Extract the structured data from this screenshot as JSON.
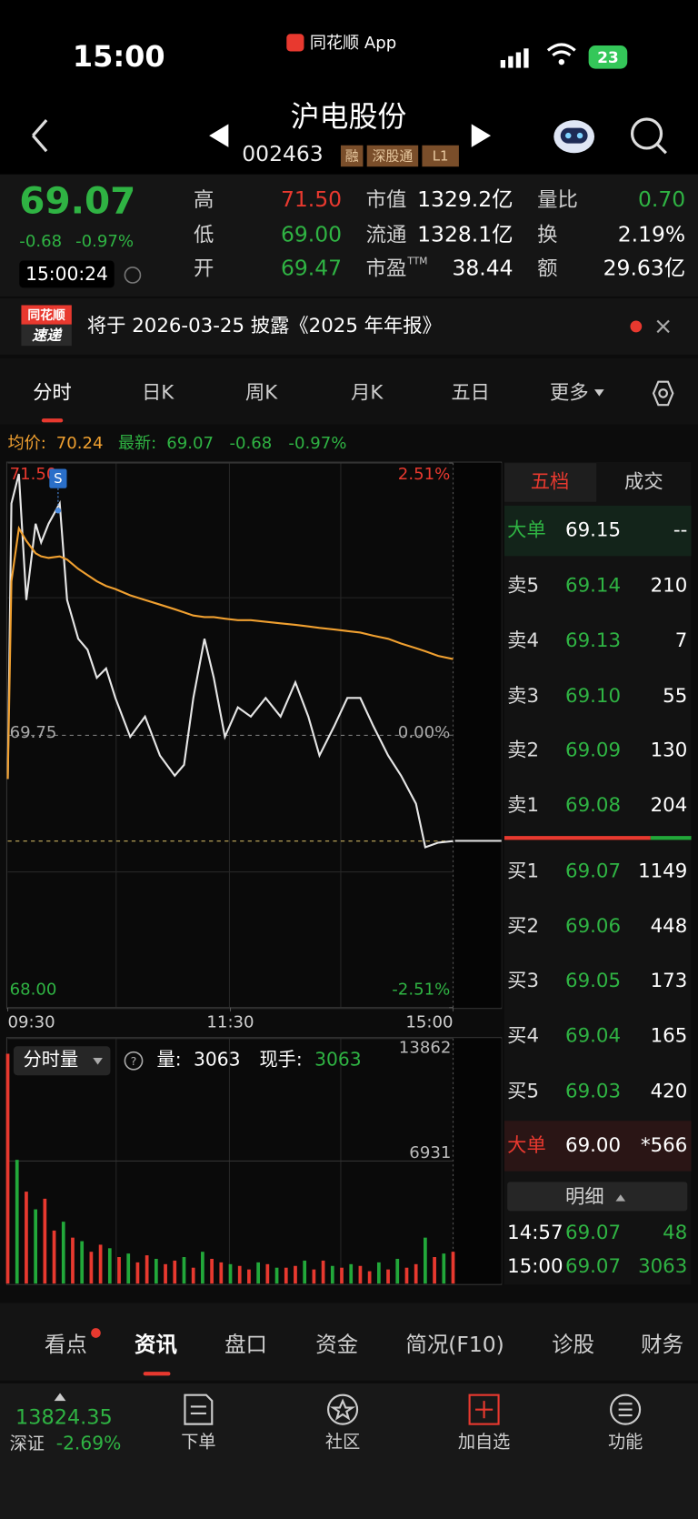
{
  "status_bar": {
    "time": "15:00",
    "app_name": "同花顺 App",
    "battery": "23"
  },
  "header": {
    "title": "沪电股份",
    "code": "002463",
    "tags": [
      "融",
      "深股通",
      "L1"
    ]
  },
  "quote": {
    "price": "69.07",
    "change": "-0.68",
    "change_pct": "-0.97%",
    "time": "15:00:24",
    "high_label": "高",
    "high": "71.50",
    "low_label": "低",
    "low": "69.00",
    "open_label": "开",
    "open": "69.47",
    "mcap_label": "市值",
    "mcap": "1329.2亿",
    "float_label": "流通",
    "float": "1328.1亿",
    "pe_label": "市盈",
    "pe_sup": "TTM",
    "pe": "38.44",
    "vr_label": "量比",
    "vr": "0.70",
    "turnover_label": "换",
    "turnover": "2.19%",
    "amount_label": "额",
    "amount": "29.63亿"
  },
  "notice": {
    "badge_top": "同花顺",
    "badge_bottom": "速递",
    "text": "将于 2026-03-25 披露《2025 年年报》"
  },
  "tabs": [
    "分时",
    "日K",
    "周K",
    "月K",
    "五日",
    "更多"
  ],
  "info_line": {
    "avg_label": "均价:",
    "avg": "70.24",
    "last_label": "最新:",
    "last": "69.07",
    "change": "-0.68",
    "change_pct": "-0.97%"
  },
  "chart_data": [
    {
      "type": "line",
      "signal": "S",
      "x": [
        0,
        2,
        6,
        10,
        15,
        18,
        22,
        28,
        32,
        38,
        43,
        48,
        53,
        58,
        66,
        74,
        82,
        90,
        95,
        100,
        106,
        111,
        117,
        124,
        131,
        139,
        147,
        155,
        162,
        168,
        176,
        183,
        190,
        197,
        205,
        212,
        220,
        225,
        232,
        240
      ],
      "series": [
        {
          "color": "#e6e6e6",
          "values": [
            69.47,
            71.24,
            71.43,
            70.62,
            71.11,
            70.99,
            71.11,
            71.24,
            70.62,
            70.37,
            70.3,
            70.12,
            70.18,
            69.99,
            69.74,
            69.87,
            69.62,
            69.49,
            69.56,
            69.99,
            70.37,
            70.12,
            69.74,
            69.93,
            69.87,
            69.99,
            69.87,
            70.09,
            69.87,
            69.62,
            69.81,
            69.99,
            69.99,
            69.81,
            69.62,
            69.49,
            69.31,
            69.03,
            69.06,
            69.07
          ]
        },
        {
          "color": "#f0a030",
          "values": [
            69.47,
            70.74,
            71.08,
            71.0,
            70.92,
            70.9,
            70.89,
            70.9,
            70.88,
            70.82,
            70.78,
            70.74,
            70.71,
            70.69,
            70.65,
            70.62,
            70.59,
            70.56,
            70.54,
            70.52,
            70.51,
            70.51,
            70.5,
            70.49,
            70.49,
            70.48,
            70.47,
            70.46,
            70.45,
            70.44,
            70.43,
            70.42,
            70.41,
            70.39,
            70.37,
            70.34,
            70.31,
            70.29,
            70.26,
            70.24
          ]
        }
      ],
      "xlim": [
        0,
        240
      ],
      "xticks": [
        {
          "value": 0,
          "label": "09:30"
        },
        {
          "value": 120,
          "label": "11:30"
        },
        {
          "value": 240,
          "label": "15:00"
        }
      ],
      "ylim": [
        68,
        71.5
      ],
      "yticks": [
        {
          "value": 71.5,
          "label": "71.50"
        },
        {
          "value": 69.75,
          "label": "69.75"
        },
        {
          "value": 68,
          "label": "68.00"
        }
      ],
      "y2lim": [
        -2.51,
        2.51
      ],
      "y2ticks": [
        {
          "value": 2.51,
          "label": "2.51%"
        },
        {
          "value": 0,
          "label": "0.00%"
        },
        {
          "value": -2.51,
          "label": "-2.51%"
        }
      ]
    },
    {
      "type": "bar",
      "title": "分时量",
      "volume_label": "量:",
      "volume": "3063",
      "hand_label": "现手:",
      "hand": "3063",
      "x": [
        0,
        5,
        10,
        15,
        20,
        25,
        30,
        35,
        40,
        45,
        50,
        55,
        60,
        65,
        70,
        75,
        80,
        85,
        90,
        95,
        100,
        105,
        110,
        115,
        120,
        125,
        130,
        135,
        140,
        145,
        150,
        155,
        160,
        165,
        170,
        175,
        180,
        185,
        190,
        195,
        200,
        205,
        210,
        215,
        220,
        225,
        230,
        235,
        240
      ],
      "series": [
        {
          "color": "#e8392f",
          "values": [
            13000,
            null,
            5200,
            null,
            4800,
            3000,
            null,
            2600,
            null,
            1800,
            2200,
            null,
            1500,
            null,
            1200,
            1600,
            null,
            1100,
            1300,
            null,
            900,
            null,
            1400,
            1200,
            null,
            1000,
            800,
            null,
            1100,
            null,
            900,
            1000,
            null,
            800,
            1300,
            null,
            900,
            null,
            1000,
            700,
            null,
            800,
            null,
            900,
            1100,
            null,
            1500,
            null,
            1800
          ]
        },
        {
          "color": "#22a83a",
          "values": [
            null,
            7000,
            null,
            4200,
            null,
            null,
            3500,
            null,
            2400,
            null,
            null,
            2000,
            null,
            1700,
            null,
            null,
            1400,
            null,
            null,
            1500,
            null,
            1800,
            null,
            null,
            1100,
            null,
            null,
            1200,
            null,
            900,
            null,
            null,
            1300,
            null,
            null,
            1000,
            null,
            1100,
            null,
            null,
            1200,
            null,
            1400,
            null,
            null,
            2600,
            null,
            1700,
            null
          ]
        }
      ],
      "xlim": [
        0,
        240
      ],
      "ylim": [
        0,
        13862
      ],
      "yticks": [
        6931,
        13862
      ]
    }
  ],
  "order_book": {
    "tabs": [
      "五档",
      "成交"
    ],
    "rows": [
      {
        "label": "大单",
        "price": "69.15",
        "volume": "--"
      },
      {
        "label": "卖5",
        "price": "69.14",
        "volume": "210"
      },
      {
        "label": "卖4",
        "price": "69.13",
        "volume": "7"
      },
      {
        "label": "卖3",
        "price": "69.10",
        "volume": "55"
      },
      {
        "label": "卖2",
        "price": "69.09",
        "volume": "130"
      },
      {
        "label": "卖1",
        "price": "69.08",
        "volume": "204"
      },
      {
        "label": "买1",
        "price": "69.07",
        "volume": "1149"
      },
      {
        "label": "买2",
        "price": "69.06",
        "volume": "448"
      },
      {
        "label": "买3",
        "price": "69.05",
        "volume": "173"
      },
      {
        "label": "买4",
        "price": "69.04",
        "volume": "165"
      },
      {
        "label": "买5",
        "price": "69.03",
        "volume": "420"
      },
      {
        "label": "大单",
        "price": "69.00",
        "volume": "*566"
      }
    ],
    "detail_title": "明细",
    "trades": [
      {
        "time": "14:57",
        "price": "69.07",
        "volume": "48"
      },
      {
        "time": "15:00",
        "price": "69.07",
        "volume": "3063"
      }
    ]
  },
  "bottom_tabs": [
    "看点",
    "资讯",
    "盘口",
    "资金",
    "简况(F10)",
    "诊股",
    "财务"
  ],
  "footer": {
    "index_value": "13824.35",
    "index_name": "深证",
    "index_change": "-2.69%",
    "buttons": [
      "下单",
      "社区",
      "加自选",
      "功能"
    ]
  }
}
